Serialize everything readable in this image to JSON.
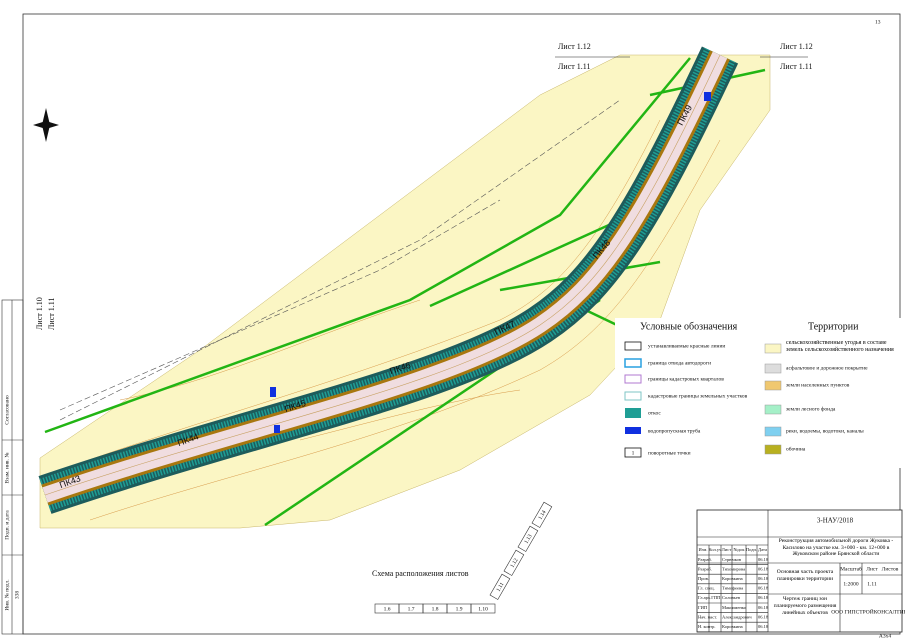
{
  "page_number": "13",
  "sheets": {
    "top_upper_left": "Лист 1.12",
    "top_lower_left": "Лист 1.11",
    "top_upper_right": "Лист 1.12",
    "top_lower_right": "Лист 1.11",
    "left_upper": "Лист 1.10",
    "left_lower": "Лист 1.11"
  },
  "pickets": [
    "ПК43",
    "ПК44",
    "ПК45",
    "ПК46",
    "ПК47",
    "ПК48",
    "ПК49"
  ],
  "legend": {
    "title": "Условные обозначения",
    "items": [
      "устанавливаемые красные линии",
      "граница отвода автодороги",
      "границы кадастровых кварталов",
      "кадастровые границы земельных участков",
      "откос",
      "водопропускная труба",
      "поворотные точки"
    ],
    "point_sample": "1"
  },
  "territories": {
    "title": "Территории",
    "items": [
      "сельскохозяйственные угодья в составе земель сельскохозяйственного назначения",
      "асфальтовое и дорожное покрытие",
      "земли населенных пунктов",
      "земли лесного фонда",
      "реки, водоемы, водотоки, каналы",
      "обочина"
    ]
  },
  "scheme": {
    "title": "Схема расположения листов",
    "sheets": [
      "1.6",
      "1.7",
      "1.8",
      "1.9",
      "1.10",
      "1.11",
      "1.12",
      "1.13",
      "1.14"
    ]
  },
  "stamp": {
    "items": [
      "Согласовано",
      "Взам. инв. №",
      "Подп. и дата",
      "Инв. № подл."
    ],
    "inv": "338"
  },
  "title_block": {
    "code": "3-НАУ/2018",
    "project": "Реконструкция автомобильной дороги Жуковка - Касилово на участке км. 3+000 - км. 12+000 в Жуковском районе Брянской области",
    "part": "Основная часть проекта планировки территории",
    "drawing": "Чертеж границ зон планируемого размещения линейных объектов",
    "scale_label": "Масштаб",
    "sheet_label": "Лист",
    "sheets_label": "Листов",
    "scale": "1:2000",
    "sheet": "1.11",
    "company": "ООО ГИПСТРОЙКОНСАЛТИНГ",
    "format": "А3х4",
    "header": [
      "Изм.",
      "Кол.уч",
      "Лист",
      "№док",
      "Подп.",
      "Дата"
    ],
    "rows": [
      [
        "Разраб.",
        "Стрючков",
        "06.18"
      ],
      [
        "Разраб.",
        "Тихомирова",
        "06.18"
      ],
      [
        "Пров.",
        "Коровкина",
        "06.18"
      ],
      [
        "Гл. спец.",
        "Тимофеева",
        "06.18"
      ],
      [
        "Гл.арх.ГПП",
        "Соловьев",
        "06.18"
      ],
      [
        "ГИП",
        "Максименко",
        "06.18"
      ],
      [
        "Нач. маст.",
        "Александрович",
        "06.18"
      ],
      [
        "Н. контр.",
        "Коровкина",
        "06.18"
      ]
    ]
  }
}
